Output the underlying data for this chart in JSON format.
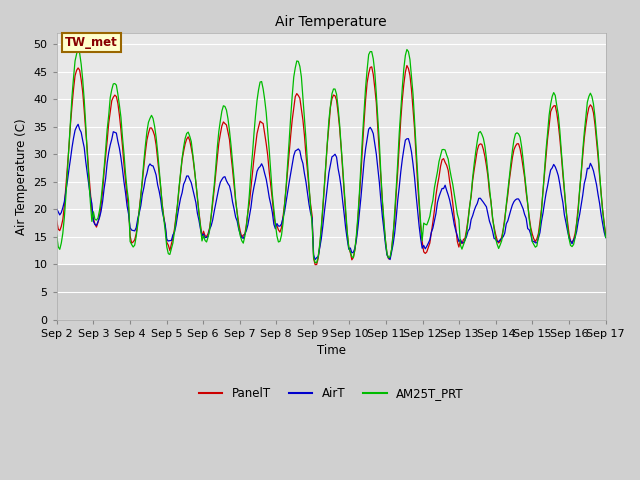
{
  "title": "Air Temperature",
  "ylabel": "Air Temperature (C)",
  "xlabel": "Time",
  "ylim": [
    0,
    52
  ],
  "yticks": [
    0,
    5,
    10,
    15,
    20,
    25,
    30,
    35,
    40,
    45,
    50
  ],
  "plot_bg_light": "#e8e8e8",
  "plot_bg_dark": "#d0d0d0",
  "fig_bg_color": "#d0d0d0",
  "annotation_text": "TW_met",
  "annotation_bg": "#ffffcc",
  "annotation_border": "#996600",
  "legend_labels": [
    "PanelT",
    "AirT",
    "AM25T_PRT"
  ],
  "line_colors": [
    "#cc0000",
    "#0000cc",
    "#00bb00"
  ],
  "x_tick_labels": [
    "Sep 2",
    "Sep 3",
    "Sep 4",
    "Sep 5",
    "Sep 6",
    "Sep 7",
    "Sep 8",
    "Sep 9",
    "Sep 10",
    "Sep 11",
    "Sep 12",
    "Sep 13",
    "Sep 14",
    "Sep 15",
    "Sep 16",
    "Sep 17"
  ],
  "n_days": 15,
  "panel_peaks": [
    46,
    41,
    35,
    33,
    36,
    36,
    41,
    41,
    46,
    46,
    29,
    32,
    32,
    39,
    39
  ],
  "panel_mins": [
    16,
    17,
    14,
    13,
    15,
    15,
    16,
    10,
    11,
    11,
    12,
    14,
    14,
    14,
    14
  ],
  "air_peaks": [
    35,
    34,
    28,
    26,
    26,
    28,
    31,
    30,
    35,
    33,
    24,
    22,
    22,
    28,
    28
  ],
  "air_mins": [
    19,
    17,
    16,
    14,
    15,
    15,
    17,
    11,
    12,
    11,
    13,
    14,
    14,
    14,
    14
  ],
  "am25_peaks": [
    49,
    43,
    37,
    34,
    39,
    43,
    47,
    42,
    49,
    49,
    31,
    34,
    34,
    41,
    41
  ],
  "am25_mins": [
    13,
    18,
    13,
    12,
    14,
    14,
    14,
    10,
    11,
    11,
    17,
    13,
    13,
    13,
    13
  ],
  "seed": 42
}
